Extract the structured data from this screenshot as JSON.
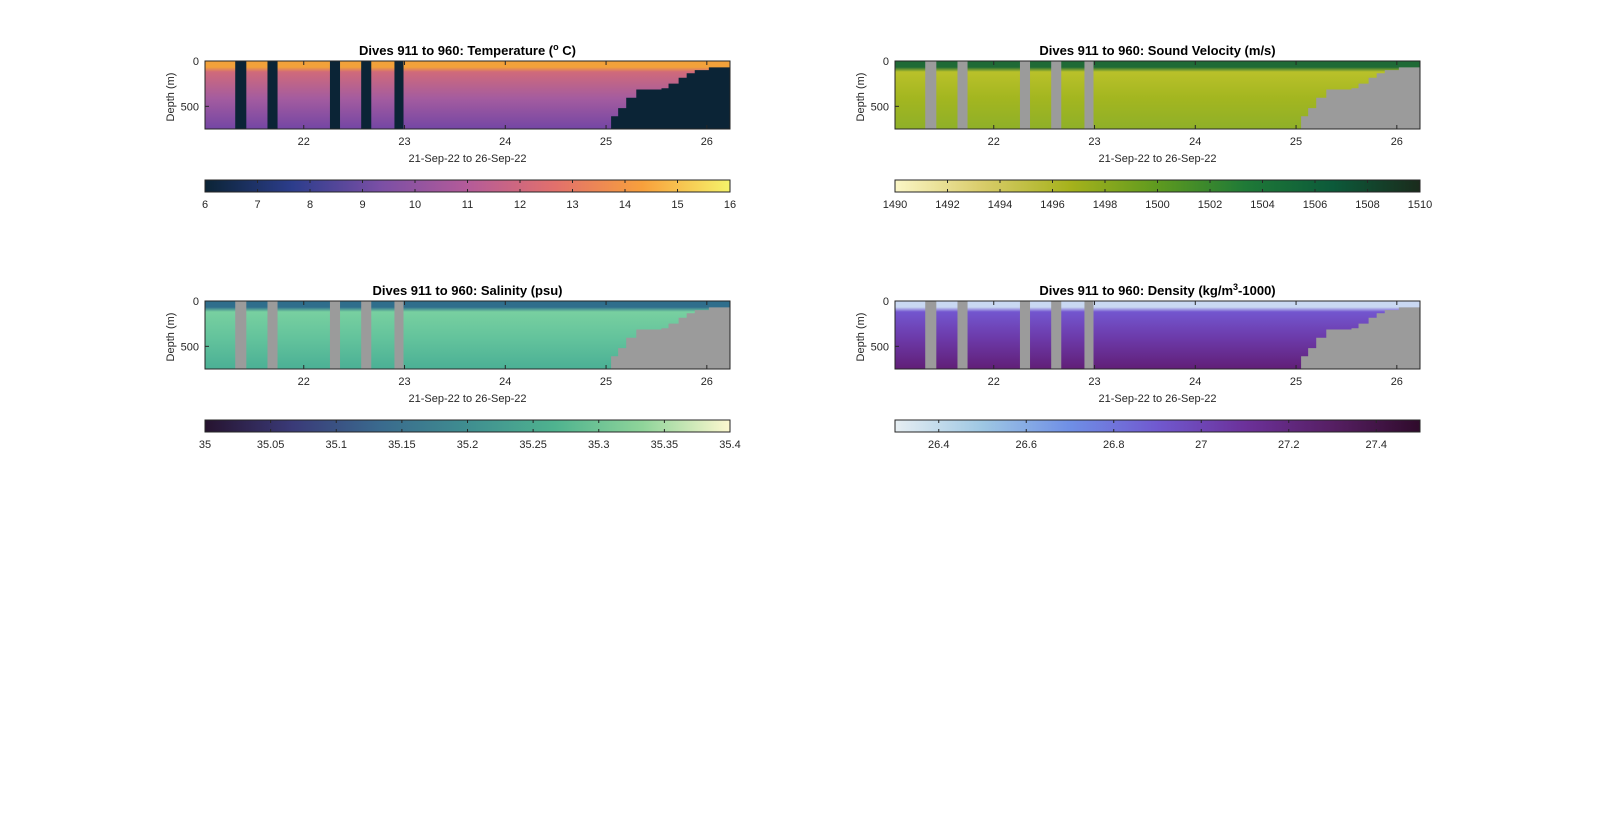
{
  "chart_data": [
    {
      "type": "heatmap",
      "title": "Dives 911 to 960: Temperature (",
      "title_sup": "o",
      "title_after": " C)",
      "xlabel": "21-Sep-22 to 26-Sep-22",
      "ylabel": "Depth (m)",
      "xlim": [
        21.02,
        26.23
      ],
      "ylim": [
        750,
        0
      ],
      "x_ticks": [
        22,
        23,
        24,
        25,
        26
      ],
      "y_ticks": [
        0,
        500
      ],
      "gap_color": "#0b2436",
      "colorbar": {
        "min": 6,
        "max": 16,
        "ticks": [
          "6",
          "7",
          "8",
          "9",
          "10",
          "11",
          "12",
          "13",
          "14",
          "15",
          "16"
        ],
        "tick_values": [
          6,
          7,
          8,
          9,
          10,
          11,
          12,
          13,
          14,
          15,
          16
        ],
        "colors": [
          "#0b2436",
          "#2c3d8c",
          "#7a4fa5",
          "#b45b99",
          "#e2706c",
          "#f8a03c",
          "#f5f36a"
        ]
      },
      "surface_color": "#f2a13a",
      "upper_color": "#d06a7a",
      "mid_color": "#a45c9f",
      "deep_color": "#7446a4"
    },
    {
      "type": "heatmap",
      "title": "Dives 911 to 960: Sound Velocity (m/s)",
      "title_sup": "",
      "title_after": "",
      "xlabel": "21-Sep-22 to 26-Sep-22",
      "ylabel": "Depth (m)",
      "xlim": [
        21.02,
        26.23
      ],
      "ylim": [
        750,
        0
      ],
      "x_ticks": [
        22,
        23,
        24,
        25,
        26
      ],
      "y_ticks": [
        0,
        500
      ],
      "gap_color": "#9b9b9b",
      "colorbar": {
        "min": 1490,
        "max": 1510,
        "ticks": [
          "1490",
          "1492",
          "1494",
          "1496",
          "1498",
          "1500",
          "1502",
          "1504",
          "1506",
          "1508",
          "1510"
        ],
        "tick_values": [
          1490,
          1492,
          1494,
          1496,
          1498,
          1500,
          1502,
          1504,
          1506,
          1508,
          1510
        ],
        "colors": [
          "#fbf6c6",
          "#d9cc6a",
          "#a6b21c",
          "#5e9a1f",
          "#1f7a37",
          "#0c5a3a",
          "#1a2b1c"
        ]
      },
      "surface_color": "#1f6a36",
      "upper_color": "#b9c12a",
      "mid_color": "#a3b620",
      "deep_color": "#8fb028"
    },
    {
      "type": "heatmap",
      "title": "Dives 911 to 960: Salinity (psu)",
      "title_sup": "",
      "title_after": "",
      "xlabel": "21-Sep-22 to 26-Sep-22",
      "ylabel": "Depth (m)",
      "xlim": [
        21.02,
        26.23
      ],
      "ylim": [
        750,
        0
      ],
      "x_ticks": [
        22,
        23,
        24,
        25,
        26
      ],
      "y_ticks": [
        0,
        500
      ],
      "gap_color": "#9b9b9b",
      "colorbar": {
        "min": 35,
        "max": 35.4,
        "ticks": [
          "35",
          "35.05",
          "35.1",
          "35.15",
          "35.2",
          "35.25",
          "35.3",
          "35.35",
          "35.4"
        ],
        "tick_values": [
          35,
          35.05,
          35.1,
          35.15,
          35.2,
          35.25,
          35.3,
          35.35,
          35.4
        ],
        "colors": [
          "#26132f",
          "#3a3a78",
          "#3a6a8e",
          "#3f8e90",
          "#4fb38f",
          "#8fd49a",
          "#fdf8cf"
        ]
      },
      "surface_color": "#2f6e8c",
      "upper_color": "#78d0a0",
      "mid_color": "#63c39c",
      "deep_color": "#4bb095"
    },
    {
      "type": "heatmap",
      "title": "Dives 911 to 960: Density (kg/m",
      "title_sup": "3",
      "title_after": "-1000)",
      "xlabel": "21-Sep-22 to 26-Sep-22",
      "ylabel": "Depth (m)",
      "xlim": [
        21.02,
        26.23
      ],
      "ylim": [
        750,
        0
      ],
      "x_ticks": [
        22,
        23,
        24,
        25,
        26
      ],
      "y_ticks": [
        0,
        500
      ],
      "gap_color": "#9b9b9b",
      "colorbar": {
        "min": 26.3,
        "max": 27.5,
        "ticks": [
          "26.4",
          "26.6",
          "26.8",
          "27",
          "27.2",
          "27.4"
        ],
        "tick_values": [
          26.4,
          26.6,
          26.8,
          27,
          27.2,
          27.4
        ],
        "colors": [
          "#e6eef2",
          "#9ec7e3",
          "#6f8fe6",
          "#7059cf",
          "#6c319a",
          "#561f63",
          "#2f0b2b"
        ]
      },
      "surface_color": "#c9d8f2",
      "upper_color": "#7356cf",
      "mid_color": "#6c3aa9",
      "deep_color": "#611f77"
    }
  ],
  "shared": {
    "gaps": [
      [
        21.32,
        21.43
      ],
      [
        21.64,
        21.74
      ],
      [
        22.26,
        22.36
      ],
      [
        22.57,
        22.67
      ],
      [
        22.9,
        22.99
      ]
    ],
    "bottom_steps": [
      [
        25.05,
        610
      ],
      [
        25.12,
        520
      ],
      [
        25.2,
        405
      ],
      [
        25.3,
        315
      ],
      [
        25.55,
        300
      ],
      [
        25.62,
        250
      ],
      [
        25.72,
        185
      ],
      [
        25.8,
        135
      ],
      [
        25.88,
        100
      ],
      [
        26.02,
        70
      ],
      [
        26.23,
        70
      ]
    ]
  }
}
